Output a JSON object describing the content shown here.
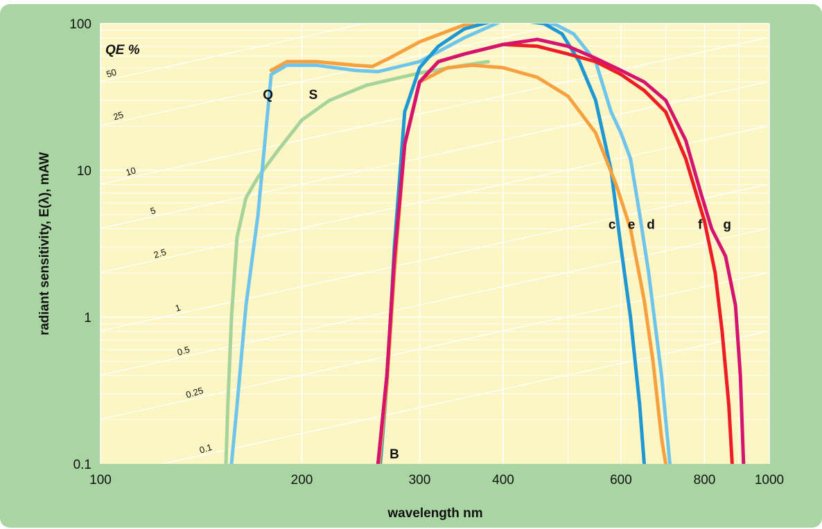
{
  "chart_data": {
    "type": "line",
    "xscale": "log",
    "yscale": "log",
    "xlim": [
      100,
      1000
    ],
    "ylim": [
      0.1,
      100
    ],
    "xlabel": "wavelength  nm",
    "ylabel": "radiant sensitivity, E(λ), mAW",
    "x_ticks": [
      "100",
      "200",
      "300",
      "400",
      "600",
      "800",
      "1000"
    ],
    "y_ticks": [
      "0.1",
      "1",
      "10",
      "100"
    ],
    "qe_title": "QE  %",
    "qe_lines": [
      {
        "label": "50",
        "qe": 50
      },
      {
        "label": "25",
        "qe": 25
      },
      {
        "label": "10",
        "qe": 10
      },
      {
        "label": "5",
        "qe": 5
      },
      {
        "label": "2.5",
        "qe": 2.5
      },
      {
        "label": "1",
        "qe": 1
      },
      {
        "label": "0.5",
        "qe": 0.5
      },
      {
        "label": "0.25",
        "qe": 0.25
      },
      {
        "label": "0.1",
        "qe": 0.1
      }
    ],
    "grid": true,
    "background_color": "#fbf6c4",
    "frame_color": "#a9d5a2",
    "series": [
      {
        "color": "#a5d39a",
        "x": [
          154,
          155,
          157,
          160,
          165,
          172,
          185,
          200,
          220,
          250,
          300,
          350,
          380
        ],
        "y": [
          0.1,
          0.25,
          1,
          3.5,
          6.5,
          9,
          14,
          22,
          30,
          38,
          46,
          52,
          55
        ]
      },
      {
        "color": "#f7a040",
        "x": [
          180,
          190,
          210,
          240,
          255,
          270,
          300,
          350,
          380,
          400
        ],
        "y": [
          48,
          55,
          55,
          52,
          51,
          58,
          75,
          98,
          104,
          104
        ]
      },
      {
        "color": "#6ec4ea",
        "x": [
          157,
          160,
          165,
          172,
          180,
          190,
          210,
          240,
          260,
          300,
          350,
          400,
          450,
          480,
          510,
          550,
          580,
          600,
          620,
          640,
          660,
          690,
          710
        ],
        "y": [
          0.1,
          0.25,
          1.2,
          5,
          45,
          52,
          52,
          48,
          47,
          55,
          80,
          105,
          104,
          98,
          85,
          55,
          25,
          18,
          12,
          5,
          2,
          0.4,
          0.1
        ]
      },
      {
        "color": "#1e97d2",
        "x": [
          262,
          268,
          275,
          285,
          300,
          320,
          350,
          380,
          400,
          430,
          460,
          490,
          520,
          550,
          580,
          600,
          620,
          640,
          650
        ],
        "y": [
          0.1,
          0.35,
          3,
          25,
          50,
          70,
          92,
          102,
          105,
          104,
          100,
          85,
          55,
          30,
          10,
          3,
          1,
          0.25,
          0.1
        ]
      },
      {
        "color": "#f7a040",
        "x": [
          261,
          268,
          275,
          285,
          300,
          330,
          360,
          400,
          450,
          500,
          550,
          590,
          620,
          650,
          670,
          690,
          700
        ],
        "y": [
          0.1,
          0.35,
          2,
          15,
          40,
          50,
          52,
          50,
          43,
          32,
          18,
          8,
          4,
          1.3,
          0.5,
          0.15,
          0.1
        ]
      },
      {
        "color": "#ee1c25",
        "x": [
          260,
          268,
          275,
          285,
          300,
          320,
          350,
          400,
          450,
          500,
          550,
          600,
          650,
          700,
          750,
          800,
          830,
          850,
          870,
          880
        ],
        "y": [
          0.1,
          0.4,
          2.5,
          15,
          40,
          55,
          62,
          72,
          70,
          62,
          55,
          45,
          35,
          25,
          12,
          4.5,
          2,
          0.8,
          0.25,
          0.1
        ]
      },
      {
        "color": "#d4146e",
        "x": [
          260,
          268,
          275,
          285,
          300,
          320,
          350,
          400,
          450,
          500,
          550,
          600,
          650,
          700,
          750,
          790,
          820,
          860,
          890,
          905,
          915
        ],
        "y": [
          0.1,
          0.4,
          2.5,
          15,
          40,
          55,
          62,
          72,
          78,
          70,
          58,
          48,
          40,
          30,
          16,
          7,
          4,
          2.6,
          1.2,
          0.4,
          0.1
        ]
      }
    ],
    "labels": [
      {
        "text": "Q",
        "x": 178,
        "y": 33
      },
      {
        "text": "S",
        "x": 208,
        "y": 33
      },
      {
        "text": "B",
        "x": 275,
        "y": 0.118
      },
      {
        "text": "c",
        "x": 582,
        "y": 4.3
      },
      {
        "text": "e",
        "x": 622,
        "y": 4.3
      },
      {
        "text": "d",
        "x": 665,
        "y": 4.3
      },
      {
        "text": "f",
        "x": 788,
        "y": 4.3
      },
      {
        "text": "g",
        "x": 865,
        "y": 4.3
      }
    ]
  }
}
